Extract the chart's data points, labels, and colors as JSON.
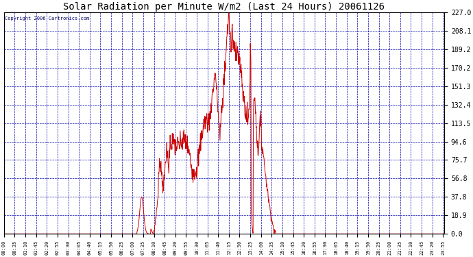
{
  "title": "Solar Radiation per Minute W/m2 (Last 24 Hours) 20061126",
  "copyright_text": "Copyright 2006 Cartronics.com",
  "background_color": "#FFFFFF",
  "plot_bg_color": "#FFFFFF",
  "line_color": "#CC0000",
  "grid_color": "#0000AA",
  "axis_label_color": "#000000",
  "title_color": "#000000",
  "yticks": [
    0.0,
    18.9,
    37.8,
    56.8,
    75.7,
    94.6,
    113.5,
    132.4,
    151.3,
    170.2,
    189.2,
    208.1,
    227.0
  ],
  "ymax": 227.0,
  "ymin": 0.0,
  "minutes_per_tick": 35
}
